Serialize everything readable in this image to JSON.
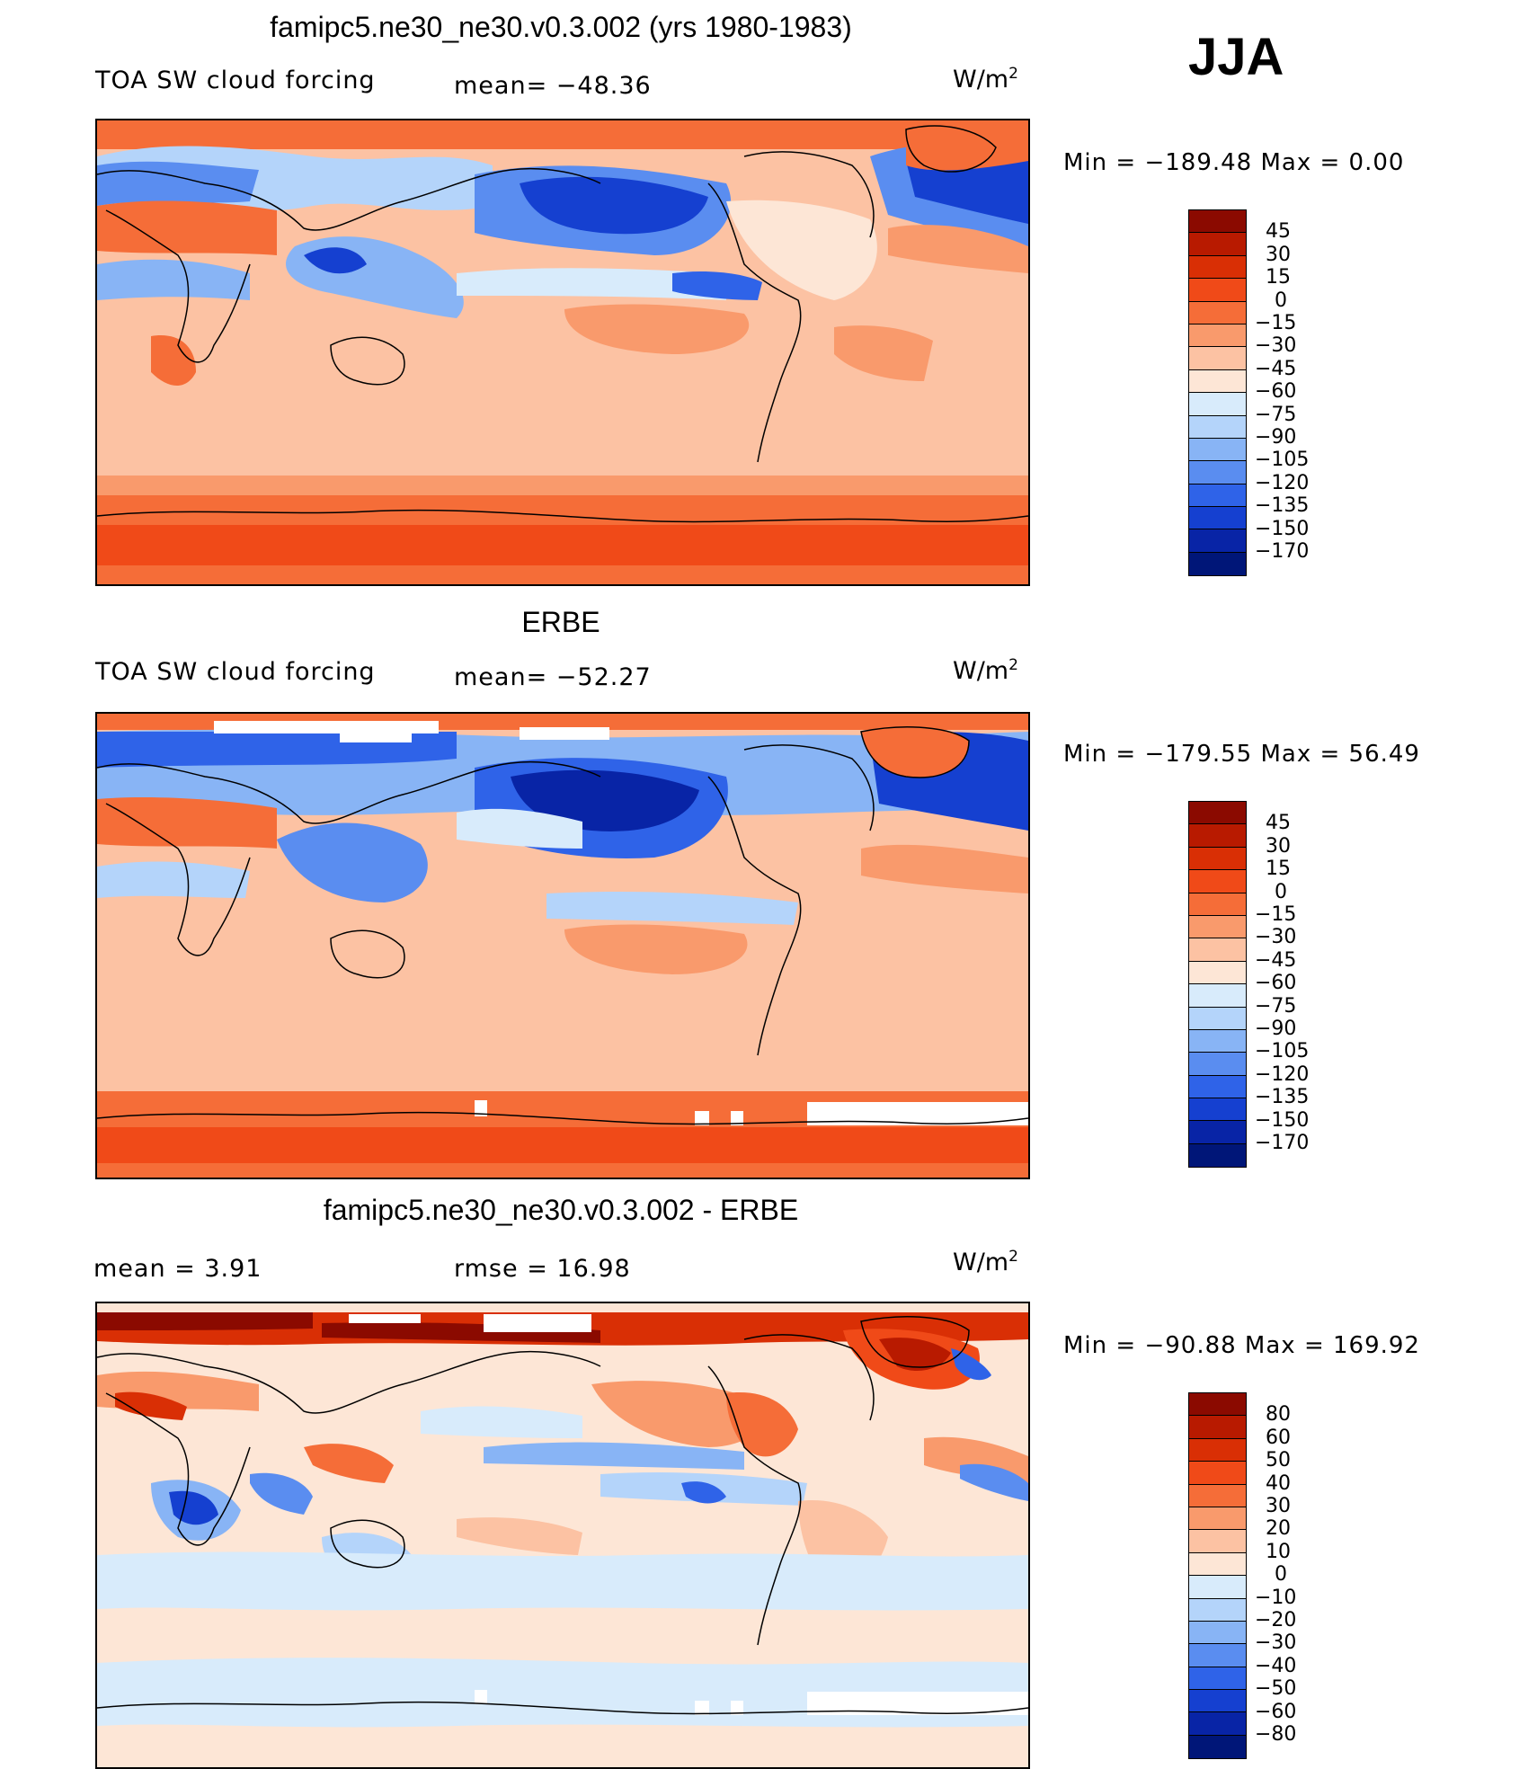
{
  "season": "JJA",
  "units_base": "W/m",
  "units_exp": "2",
  "panels": [
    {
      "id": "model",
      "title": "famipc5.ne30_ne30.v0.3.002 (yrs 1980-1983)",
      "left_label": "TOA SW cloud forcing",
      "mid_label": "mean= −48.36",
      "minmax": "Min  =  −189.48  Max  =     0.00",
      "levels": [
        "45",
        "30",
        "15",
        "0",
        "−15",
        "−30",
        "−45",
        "−60",
        "−75",
        "−90",
        "−105",
        "−120",
        "−135",
        "−150",
        "−170"
      ],
      "colors": [
        "#8b0a00",
        "#b81a00",
        "#d92f05",
        "#f04a18",
        "#f56d38",
        "#f99a6c",
        "#fcc2a3",
        "#fde6d6",
        "#d8ebfb",
        "#b4d4fa",
        "#88b4f5",
        "#5a8df0",
        "#2f63e8",
        "#1540d0",
        "#0824a6",
        "#001678"
      ]
    },
    {
      "id": "obs",
      "title": "ERBE",
      "left_label": "TOA SW cloud forcing",
      "mid_label": "mean= −52.27",
      "minmax": "Min  =  −179.55  Max  =   56.49",
      "levels": [
        "45",
        "30",
        "15",
        "0",
        "−15",
        "−30",
        "−45",
        "−60",
        "−75",
        "−90",
        "−105",
        "−120",
        "−135",
        "−150",
        "−170"
      ],
      "colors": [
        "#8b0a00",
        "#b81a00",
        "#d92f05",
        "#f04a18",
        "#f56d38",
        "#f99a6c",
        "#fcc2a3",
        "#fde6d6",
        "#d8ebfb",
        "#b4d4fa",
        "#88b4f5",
        "#5a8df0",
        "#2f63e8",
        "#1540d0",
        "#0824a6",
        "#001678"
      ]
    },
    {
      "id": "diff",
      "title": "famipc5.ne30_ne30.v0.3.002 - ERBE",
      "left_label": "mean  =      3.91",
      "mid_label": "rmse  =    16.98",
      "minmax": "Min  =  −90.88  Max  =  169.92",
      "levels": [
        "80",
        "60",
        "50",
        "40",
        "30",
        "20",
        "10",
        "0",
        "−10",
        "−20",
        "−30",
        "−40",
        "−50",
        "−60",
        "−80"
      ],
      "colors": [
        "#8b0a00",
        "#b81a00",
        "#d92f05",
        "#f04a18",
        "#f56d38",
        "#f99a6c",
        "#fcc2a3",
        "#fde6d6",
        "#d8ebfb",
        "#b4d4fa",
        "#88b4f5",
        "#5a8df0",
        "#2f63e8",
        "#1540d0",
        "#0824a6",
        "#001678"
      ]
    }
  ]
}
